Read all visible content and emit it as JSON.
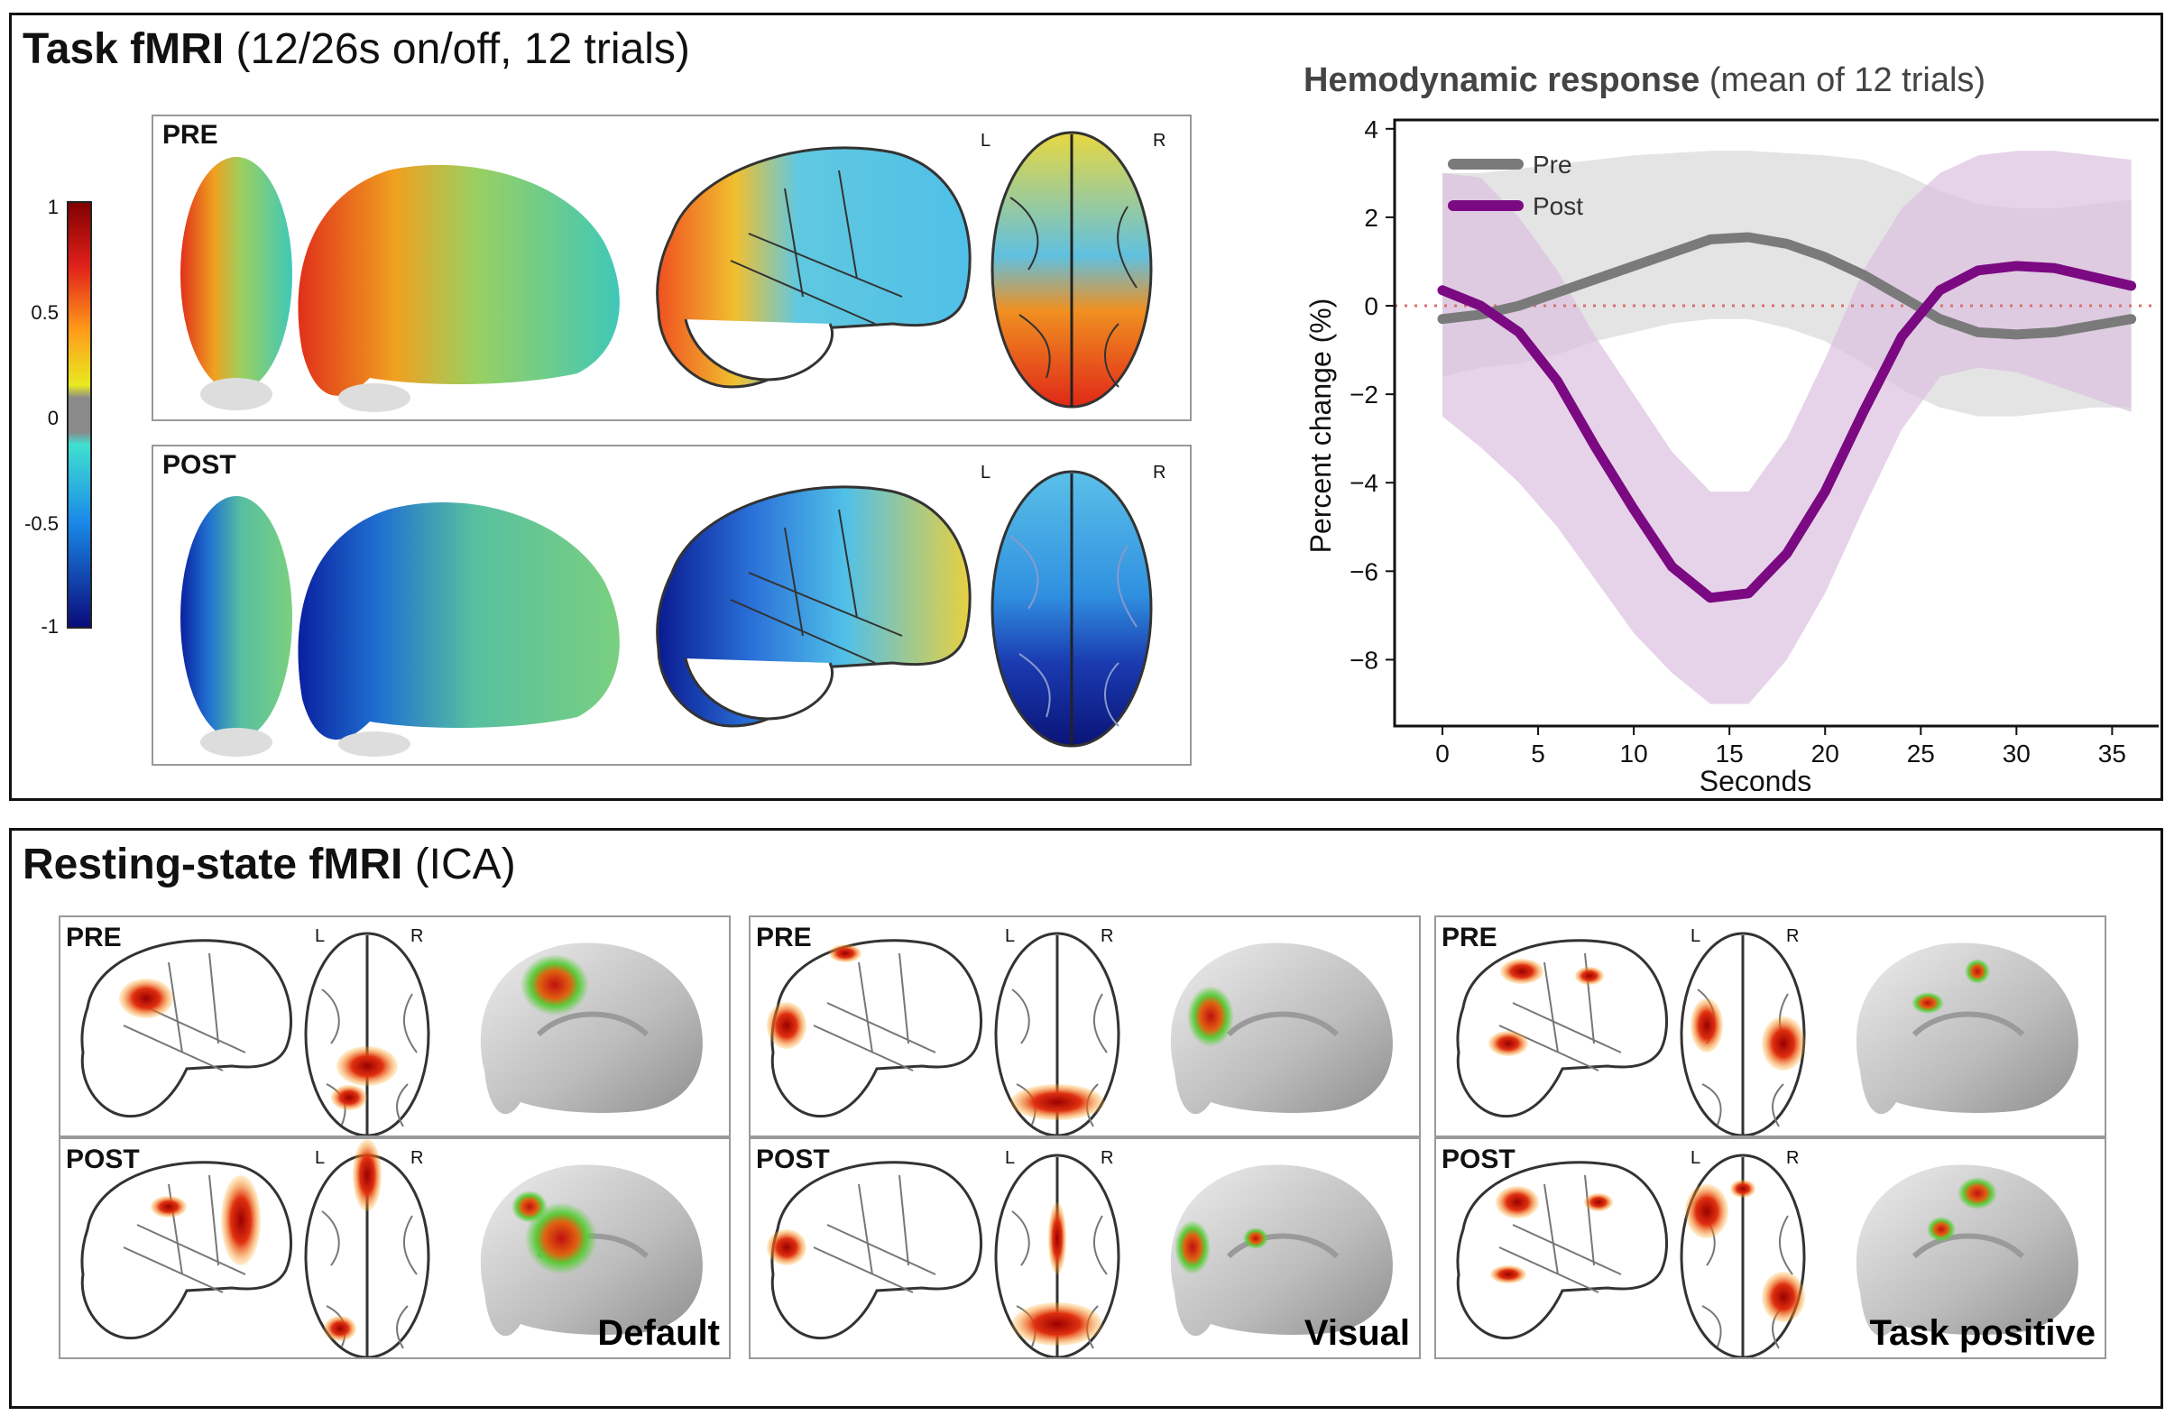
{
  "task": {
    "title_bold": "Task fMRI",
    "title_rest": " (12/26s on/off, 12 trials)",
    "colorbar": {
      "ticks": [
        "1",
        "0.5",
        "0",
        "-0.5",
        "-1"
      ]
    },
    "pre_label": "PRE",
    "post_label": "POST",
    "left_marker": "L",
    "right_marker": "R"
  },
  "resting": {
    "title_bold": "Resting-state fMRI",
    "title_rest": " (ICA)",
    "pre_label": "PRE",
    "post_label": "POST",
    "left_marker": "L",
    "right_marker": "R",
    "networks": [
      "Default",
      "Visual",
      "Task positive"
    ]
  },
  "chart_data": {
    "type": "line",
    "title_bold": "Hemodynamic response",
    "title_rest": " (mean of 12 trials)",
    "xlabel": "Seconds",
    "ylabel": "Percent change (%)",
    "xlim": [
      -2.5,
      38
    ],
    "ylim": [
      -9.5,
      4.2
    ],
    "x_ticks": [
      0,
      5,
      10,
      15,
      20,
      25,
      30,
      35
    ],
    "y_ticks": [
      4,
      2,
      0,
      -2,
      -4,
      -6,
      -8
    ],
    "y_tick_labels": [
      "4",
      "2",
      "0",
      "−2",
      "−4",
      "−6",
      "−8"
    ],
    "x": [
      0,
      2,
      4,
      6,
      8,
      10,
      12,
      14,
      16,
      18,
      20,
      22,
      24,
      26,
      28,
      30,
      32,
      34,
      36
    ],
    "series": [
      {
        "name": "Pre",
        "color": "#7a7a7a",
        "band_color": "#d9d9d9",
        "values": [
          -0.3,
          -0.2,
          0.0,
          0.3,
          0.6,
          0.9,
          1.2,
          1.5,
          1.55,
          1.4,
          1.1,
          0.7,
          0.2,
          -0.3,
          -0.6,
          -0.65,
          -0.6,
          -0.45,
          -0.3
        ],
        "upper": [
          3.0,
          3.0,
          3.1,
          3.2,
          3.3,
          3.4,
          3.45,
          3.5,
          3.5,
          3.45,
          3.4,
          3.3,
          3.0,
          2.6,
          2.3,
          2.2,
          2.2,
          2.3,
          2.4
        ],
        "lower": [
          -1.6,
          -1.4,
          -1.3,
          -1.1,
          -0.8,
          -0.6,
          -0.4,
          -0.3,
          -0.3,
          -0.5,
          -0.8,
          -1.3,
          -1.9,
          -2.3,
          -2.5,
          -2.5,
          -2.4,
          -2.3,
          -2.3
        ]
      },
      {
        "name": "Post",
        "color": "#7b0a82",
        "band_color": "#dcc0df",
        "values": [
          0.35,
          0.0,
          -0.6,
          -1.7,
          -3.2,
          -4.6,
          -5.9,
          -6.6,
          -6.5,
          -5.6,
          -4.2,
          -2.4,
          -0.7,
          0.35,
          0.8,
          0.9,
          0.85,
          0.65,
          0.45
        ],
        "upper": [
          3.0,
          2.9,
          2.0,
          0.8,
          -0.7,
          -2.0,
          -3.3,
          -4.2,
          -4.2,
          -3.0,
          -1.2,
          0.8,
          2.2,
          3.0,
          3.4,
          3.5,
          3.5,
          3.4,
          3.3
        ],
        "lower": [
          -2.5,
          -3.2,
          -4.0,
          -5.0,
          -6.2,
          -7.4,
          -8.3,
          -9.0,
          -9.0,
          -8.0,
          -6.5,
          -4.6,
          -2.8,
          -1.6,
          -1.4,
          -1.5,
          -1.8,
          -2.1,
          -2.4
        ]
      }
    ],
    "reference_line": {
      "y": 0,
      "color": "#d87070",
      "style": "dotted"
    },
    "legend": "top-left"
  }
}
